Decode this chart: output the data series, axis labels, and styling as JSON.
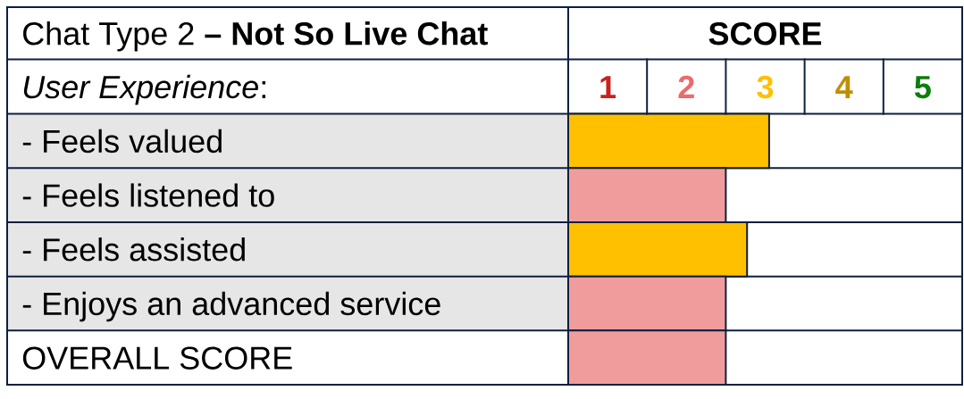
{
  "chart_data": {
    "type": "bar",
    "orientation": "horizontal",
    "title": "Chat Type 2 **– Not So Live Chat**",
    "xlabel": "SCORE",
    "ylabel": "*User Experience*:",
    "categories": [
      "- Feels valued",
      "- Feels listened to",
      "- Feels assisted",
      "- Enjoys an advanced service",
      "OVERALL SCORE"
    ],
    "values": [
      2.55,
      2,
      2.27,
      2,
      2
    ],
    "colors": [
      "#ffc000",
      "#f19c9c",
      "#ffc000",
      "#f19c9c",
      "#f19c9c"
    ],
    "xlim": [
      0,
      5
    ],
    "xticks": [
      {
        "value": 0.5,
        "label": "1"
      },
      {
        "value": 1.5,
        "label": "2"
      },
      {
        "value": 2.5,
        "label": "3"
      },
      {
        "value": 3.5,
        "label": "4"
      },
      {
        "value": 4.5,
        "label": "5"
      }
    ],
    "grid": "y"
  }
}
